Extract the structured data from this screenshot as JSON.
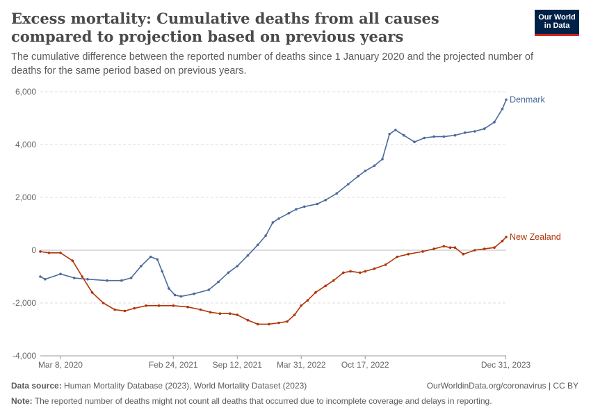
{
  "header": {
    "title": "Excess mortality: Cumulative deaths from all causes compared to projection based on previous years",
    "subtitle": "The cumulative difference between the reported number of deaths since 1 January 2020 and the projected number of deaths for the same period based on previous years.",
    "logo_line1": "Our World",
    "logo_line2": "in Data"
  },
  "footer": {
    "source_label": "Data source:",
    "source_text": "Human Mortality Database (2023), World Mortality Dataset (2023)",
    "link": "OurWorldinData.org/coronavirus | CC BY",
    "note_label": "Note:",
    "note_text": "The reported number of deaths might not count all deaths that occurred due to incomplete coverage and delays in reporting."
  },
  "colors": {
    "denmark": "#4c6a9c",
    "new_zealand": "#b13507",
    "grid": "#dddddd",
    "zero": "#bbbbbb"
  },
  "chart_data": {
    "type": "line",
    "title": "",
    "xlabel": "",
    "ylabel": "",
    "ylim": [
      -4000,
      6000
    ],
    "xlim": [
      "2020-01-05",
      "2024-01-01"
    ],
    "grid": true,
    "legend": "inline-right",
    "y_ticks": [
      -4000,
      -2000,
      0,
      2000,
      4000,
      6000
    ],
    "y_tick_labels": [
      "-4,000",
      "-2,000",
      "0",
      "2,000",
      "4,000",
      "6,000"
    ],
    "x_ticks": [
      "2020-03-08",
      "2021-02-24",
      "2021-09-12",
      "2022-03-31",
      "2022-10-17",
      "2023-12-31"
    ],
    "x_tick_labels": [
      "Mar 8, 2020",
      "Feb 24, 2021",
      "Sep 12, 2021",
      "Mar 31, 2022",
      "Oct 17, 2022",
      "Dec 31, 2023"
    ],
    "series": [
      {
        "name": "Denmark",
        "x": [
          "2020-01-05",
          "2020-01-20",
          "2020-03-08",
          "2020-04-20",
          "2020-06-01",
          "2020-08-01",
          "2020-09-15",
          "2020-10-15",
          "2020-11-15",
          "2020-12-15",
          "2021-01-05",
          "2021-01-20",
          "2021-02-10",
          "2021-03-01",
          "2021-03-20",
          "2021-04-30",
          "2021-06-15",
          "2021-07-15",
          "2021-08-15",
          "2021-09-12",
          "2021-10-15",
          "2021-11-15",
          "2021-12-10",
          "2022-01-01",
          "2022-01-20",
          "2022-02-20",
          "2022-03-15",
          "2022-04-10",
          "2022-05-20",
          "2022-06-15",
          "2022-07-20",
          "2022-08-25",
          "2022-09-25",
          "2022-10-17",
          "2022-11-15",
          "2022-12-10",
          "2023-01-01",
          "2023-01-20",
          "2023-02-15",
          "2023-03-20",
          "2023-04-20",
          "2023-05-20",
          "2023-06-20",
          "2023-07-25",
          "2023-08-25",
          "2023-09-25",
          "2023-10-25",
          "2023-11-25",
          "2023-12-20",
          "2024-01-01"
        ],
        "y": [
          -1000,
          -1100,
          -900,
          -1050,
          -1100,
          -1150,
          -1150,
          -1050,
          -600,
          -250,
          -350,
          -800,
          -1450,
          -1700,
          -1750,
          -1650,
          -1500,
          -1200,
          -850,
          -600,
          -200,
          200,
          550,
          1050,
          1200,
          1400,
          1550,
          1650,
          1750,
          1900,
          2150,
          2500,
          2800,
          3000,
          3200,
          3450,
          4400,
          4550,
          4350,
          4100,
          4250,
          4300,
          4300,
          4350,
          4450,
          4500,
          4600,
          4850,
          5350,
          5700
        ]
      },
      {
        "name": "New Zealand",
        "x": [
          "2020-01-05",
          "2020-02-01",
          "2020-03-08",
          "2020-04-15",
          "2020-05-15",
          "2020-06-15",
          "2020-07-20",
          "2020-08-25",
          "2020-09-25",
          "2020-10-25",
          "2020-12-01",
          "2021-01-10",
          "2021-02-24",
          "2021-04-10",
          "2021-05-20",
          "2021-06-20",
          "2021-07-20",
          "2021-08-20",
          "2021-09-12",
          "2021-10-15",
          "2021-11-15",
          "2021-12-20",
          "2022-01-20",
          "2022-02-15",
          "2022-03-10",
          "2022-03-31",
          "2022-04-20",
          "2022-05-15",
          "2022-06-15",
          "2022-07-10",
          "2022-08-10",
          "2022-09-01",
          "2022-10-01",
          "2022-10-17",
          "2022-11-15",
          "2022-12-20",
          "2023-01-25",
          "2023-03-01",
          "2023-04-15",
          "2023-05-20",
          "2023-06-20",
          "2023-07-10",
          "2023-07-25",
          "2023-08-20",
          "2023-09-25",
          "2023-10-25",
          "2023-11-25",
          "2023-12-20",
          "2024-01-01"
        ],
        "y": [
          -50,
          -100,
          -100,
          -400,
          -1000,
          -1600,
          -2000,
          -2250,
          -2300,
          -2200,
          -2100,
          -2100,
          -2100,
          -2150,
          -2250,
          -2350,
          -2400,
          -2400,
          -2450,
          -2650,
          -2800,
          -2800,
          -2750,
          -2700,
          -2450,
          -2100,
          -1900,
          -1600,
          -1350,
          -1150,
          -850,
          -800,
          -850,
          -800,
          -700,
          -550,
          -250,
          -150,
          -50,
          50,
          150,
          100,
          100,
          -150,
          0,
          50,
          100,
          350,
          500
        ]
      }
    ]
  }
}
